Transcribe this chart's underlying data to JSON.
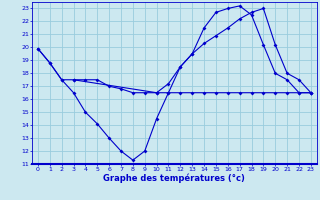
{
  "title": "Graphe des températures (°c)",
  "bg_color": "#cce8f0",
  "line_color": "#0000cc",
  "grid_color": "#99ccdd",
  "ylim": [
    11,
    23.5
  ],
  "xlim": [
    -0.5,
    23.5
  ],
  "yticks": [
    11,
    12,
    13,
    14,
    15,
    16,
    17,
    18,
    19,
    20,
    21,
    22,
    23
  ],
  "xticks": [
    0,
    1,
    2,
    3,
    4,
    5,
    6,
    7,
    8,
    9,
    10,
    11,
    12,
    13,
    14,
    15,
    16,
    17,
    18,
    19,
    20,
    21,
    22,
    23
  ],
  "curve_down_x": [
    0,
    1,
    2,
    3,
    4,
    5,
    6,
    7,
    8,
    9,
    10,
    11,
    12,
    13,
    14,
    15,
    16,
    17,
    18,
    19,
    20,
    21,
    22,
    23
  ],
  "curve_down_y": [
    19.9,
    18.8,
    17.5,
    16.5,
    15.0,
    14.1,
    13.0,
    12.0,
    11.3,
    12.0,
    14.5,
    16.5,
    18.5,
    19.5,
    21.5,
    22.7,
    23.0,
    23.2,
    22.5,
    20.2,
    18.0,
    17.5,
    16.5,
    16.5
  ],
  "curve_rise_x": [
    0,
    1,
    2,
    3,
    10,
    11,
    12,
    13,
    14,
    15,
    16,
    17,
    18,
    19,
    20,
    21,
    22,
    23
  ],
  "curve_rise_y": [
    19.9,
    18.8,
    17.5,
    17.5,
    16.5,
    17.2,
    18.5,
    19.5,
    20.3,
    20.9,
    21.5,
    22.2,
    22.7,
    23.0,
    20.2,
    18.0,
    17.5,
    16.5
  ],
  "curve_flat_x": [
    3,
    4,
    5,
    6,
    7,
    8,
    9,
    10,
    11,
    12,
    13,
    14,
    15,
    16,
    17,
    18,
    19,
    20,
    21,
    22,
    23
  ],
  "curve_flat_y": [
    17.5,
    17.5,
    17.5,
    17.0,
    16.8,
    16.5,
    16.5,
    16.5,
    16.5,
    16.5,
    16.5,
    16.5,
    16.5,
    16.5,
    16.5,
    16.5,
    16.5,
    16.5,
    16.5,
    16.5,
    16.5
  ]
}
